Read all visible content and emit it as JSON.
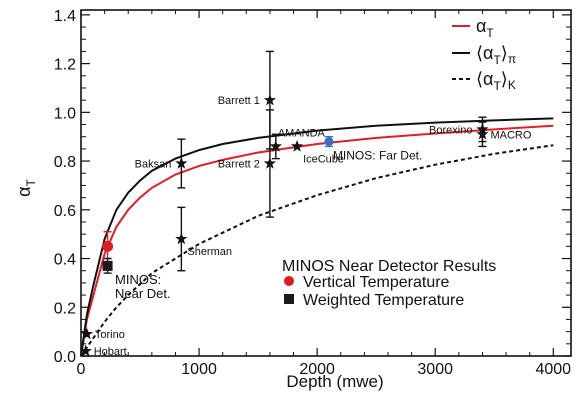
{
  "chart_data": {
    "type": "line",
    "xlabel": "Depth (mwe)",
    "ylabel": "α",
    "ylabel_sub": "T",
    "xlim": [
      0,
      4150
    ],
    "ylim": [
      0,
      1.42
    ],
    "x_ticks": [
      0,
      1000,
      2000,
      3000,
      4000
    ],
    "x_tick_labels": [
      "0",
      "1000",
      "2000",
      "3000",
      "4000"
    ],
    "y_ticks": [
      0,
      0.2,
      0.4,
      0.6,
      0.8,
      1.0,
      1.2,
      1.4
    ],
    "y_tick_labels": [
      "0.0",
      "0.2",
      "0.4",
      "0.6",
      "0.8",
      "1.0",
      "1.2",
      "1.4"
    ],
    "grid": false,
    "legend_position": "top-right",
    "legend": [
      {
        "label": "α",
        "sub": "T",
        "suffix": "",
        "color": "#dd1f26",
        "dash": "solid"
      },
      {
        "label": "⟨α",
        "sub": "T",
        "suffix": "⟩",
        "subsuffix": "π",
        "color": "#111111",
        "dash": "solid"
      },
      {
        "label": "⟨α",
        "sub": "T",
        "suffix": "⟩",
        "subsuffix": "K",
        "color": "#111111",
        "dash": "dashed"
      }
    ],
    "series": [
      {
        "name": "α_T",
        "color": "#dd1f26",
        "style": "solid",
        "x": [
          0,
          50,
          100,
          200,
          300,
          400,
          500,
          600,
          800,
          1000,
          1200,
          1500,
          2000,
          2500,
          3000,
          3500,
          4000
        ],
        "y": [
          0.0,
          0.15,
          0.24,
          0.42,
          0.53,
          0.6,
          0.65,
          0.69,
          0.745,
          0.78,
          0.805,
          0.835,
          0.87,
          0.895,
          0.913,
          0.93,
          0.945
        ]
      },
      {
        "name": "⟨α_T⟩_π",
        "color": "#111111",
        "style": "solid",
        "x": [
          0,
          50,
          100,
          200,
          300,
          400,
          500,
          600,
          800,
          1000,
          1200,
          1500,
          2000,
          2500,
          3000,
          3500,
          4000
        ],
        "y": [
          0.0,
          0.17,
          0.28,
          0.48,
          0.6,
          0.67,
          0.72,
          0.76,
          0.81,
          0.845,
          0.87,
          0.895,
          0.925,
          0.945,
          0.958,
          0.967,
          0.975
        ]
      },
      {
        "name": "⟨α_T⟩_K",
        "color": "#111111",
        "style": "dashed",
        "x": [
          0,
          100,
          200,
          300,
          400,
          600,
          800,
          1000,
          1500,
          2000,
          2500,
          3000,
          3500,
          4000
        ],
        "y": [
          0.0,
          0.07,
          0.14,
          0.2,
          0.25,
          0.34,
          0.4,
          0.46,
          0.575,
          0.66,
          0.73,
          0.785,
          0.83,
          0.865
        ]
      }
    ],
    "experiments": [
      {
        "label": "Torino",
        "x": 50,
        "y": 0.09,
        "err": 0.0,
        "label_pos": "right"
      },
      {
        "label": "Hobart",
        "x": 40,
        "y": 0.02,
        "err": 0.0,
        "label_pos": "right"
      },
      {
        "label": "Baksan",
        "x": 850,
        "y": 0.79,
        "err": 0.1,
        "label_pos": "left"
      },
      {
        "label": "Sherman",
        "x": 850,
        "y": 0.48,
        "err": 0.13,
        "label_pos": "below-right"
      },
      {
        "label": "Barrett 1",
        "x": 1600,
        "y": 1.05,
        "err": 0.2,
        "label_pos": "left"
      },
      {
        "label": "Barrett 2",
        "x": 1600,
        "y": 0.79,
        "err": 0.22,
        "label_pos": "left"
      },
      {
        "label": "AMANDA",
        "x": 1650,
        "y": 0.86,
        "err": 0.05,
        "label_pos": "above-right"
      },
      {
        "label": "IceCube",
        "x": 1830,
        "y": 0.86,
        "err": 0.0,
        "label_pos": "below-right"
      },
      {
        "label": "Borexino",
        "x": 3400,
        "y": 0.93,
        "err": 0.05,
        "label_pos": "left"
      },
      {
        "label": "MACRO",
        "x": 3400,
        "y": 0.91,
        "err": 0.05,
        "label_pos": "right"
      }
    ],
    "minos_far": {
      "label": "MINOS: Far Det.",
      "x": 2100,
      "y": 0.88,
      "err": 0.02,
      "color": "#3a6fc4"
    },
    "minos_near_vertical": {
      "x": 225,
      "y": 0.45,
      "err_lo": 0.05,
      "err_hi": 0.06,
      "color": "#dd1f26"
    },
    "minos_near_weighted": {
      "x": 225,
      "y": 0.37,
      "err": 0.03,
      "color": "#1a1a1a"
    },
    "minos_near_label_1": "MINOS:",
    "minos_near_label_2": "Near Det.",
    "results_box": {
      "title": "MINOS Near Detector Results",
      "vertical": "Vertical Temperature",
      "weighted": "Weighted Temperature"
    }
  }
}
